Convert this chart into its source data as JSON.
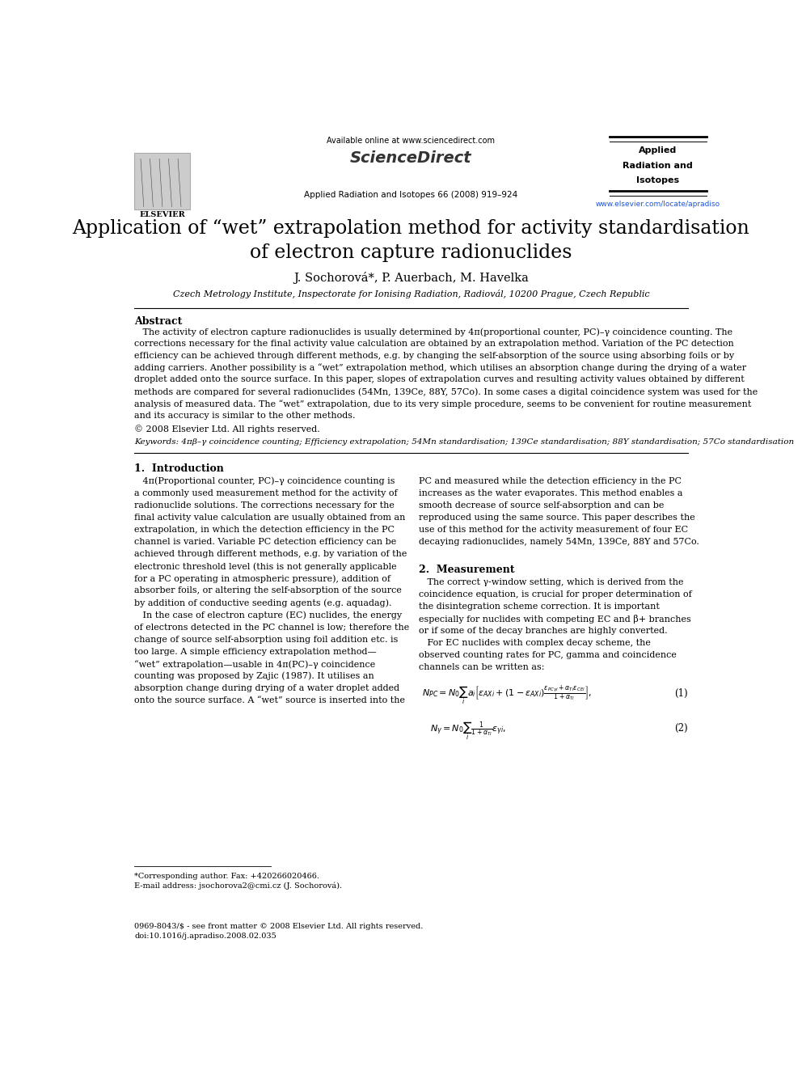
{
  "title_line1": "Application of “wet” extrapolation method for activity standardisation",
  "title_line2": "of electron capture radionuclides",
  "authors": "J. Sochorová*, P. Auerbach, M. Havelka",
  "affiliation": "Czech Metrology Institute, Inspectorate for Ionising Radiation, Radiovál, 10200 Prague, Czech Republic",
  "header_available": "Available online at www.sciencedirect.com",
  "header_journal": "Applied Radiation and Isotopes 66 (2008) 919–924",
  "header_url": "www.elsevier.com/locate/apradiso",
  "journal_name_line1": "Applied",
  "journal_name_line2": "Radiation and",
  "journal_name_line3": "Isotopes",
  "elsevier_label": "ELSEVIER",
  "abstract_title": "Abstract",
  "copyright": "© 2008 Elsevier Ltd. All rights reserved.",
  "keywords_line": "Keywords: 4πβ–γ coincidence counting; Efficiency extrapolation; 54Mn standardisation; 139Ce standardisation; 88Y standardisation; 57Co standardisation",
  "section1_title": "1.  Introduction",
  "section2_title": "2.  Measurement",
  "footnote_star": "*Corresponding author. Fax: +420266020466.",
  "footnote_email": "E-mail address: jsochorova2@cmi.cz (J. Sochorová).",
  "footnote_bottom1": "0969-8043/$ - see front matter © 2008 Elsevier Ltd. All rights reserved.",
  "footnote_bottom2": "doi:10.1016/j.apradiso.2008.02.035",
  "bg_color": "#ffffff",
  "text_color": "#000000",
  "url_color": "#1a56db"
}
